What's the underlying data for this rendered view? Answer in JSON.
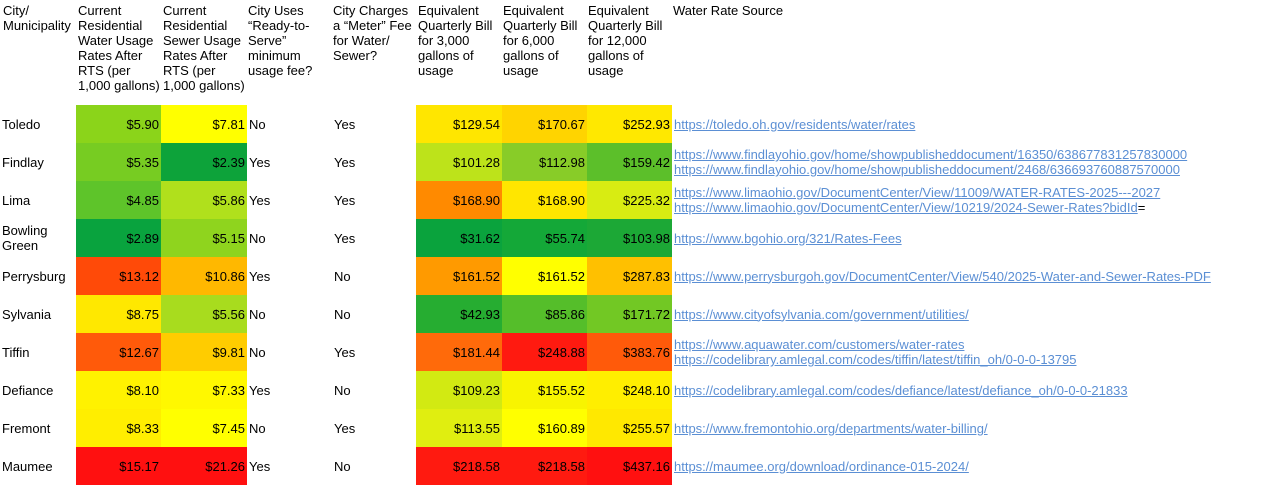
{
  "headers": [
    "City/\nMunicipality",
    "Current\nResidential\nWater Usage\nRates After\nRTS (per\n1,000 gallons)",
    "Current\nResidential\nSewer Usage\nRates After\nRTS (per\n1,000 gallons)",
    "City Uses\n“Ready-to-\nServe”\nminimum\nusage fee?",
    "City Charges\na “Meter” Fee\nfor Water/\nSewer?",
    "Equivalent\nQuarterly Bill\nfor 3,000\ngallons of\nusage",
    "Equivalent\nQuarterly Bill\nfor 6,000\ngallons of\nusage",
    "Equivalent\nQuarterly Bill\nfor 12,000\ngallons of\nusage",
    "Water Rate Source"
  ],
  "rows": [
    {
      "city": "Toledo",
      "water": "$5.90",
      "sewer": "$7.81",
      "rts": "No",
      "meter": "Yes",
      "bill3": "$129.54",
      "bill6": "$170.67",
      "bill12": "$252.93",
      "colors": [
        "#8bd41a",
        "#ffff00",
        "#ffe600",
        "#ffd400",
        "#ffe800"
      ],
      "links": [
        "https://toledo.oh.gov/residents/water/rates"
      ],
      "link_suffix": ""
    },
    {
      "city": "Findlay",
      "water": "$5.35",
      "sewer": "$2.39",
      "rts": "Yes",
      "meter": "Yes",
      "bill3": "$101.28",
      "bill6": "$112.98",
      "bill12": "$159.42",
      "colors": [
        "#77cc22",
        "#0da33a",
        "#bde31a",
        "#88cc28",
        "#5cbf2a"
      ],
      "links": [
        "https://www.findlayohio.gov/home/showpublisheddocument/16350/638677831257830000",
        "https://www.findlayohio.gov/home/showpublisheddocument/2468/636693760887570000"
      ],
      "link_suffix": ""
    },
    {
      "city": "Lima",
      "water": "$4.85",
      "sewer": "$5.86",
      "rts": "Yes",
      "meter": "Yes",
      "bill3": "$168.90",
      "bill6": "$168.90",
      "bill12": "$225.32",
      "colors": [
        "#5ec42a",
        "#b0e01c",
        "#ff8a00",
        "#ffe600",
        "#d8ec12"
      ],
      "links": [
        "https://www.limaohio.gov/DocumentCenter/View/11009/WATER-RATES-2025---2027",
        "https://www.limaohio.gov/DocumentCenter/View/10219/2024-Sewer-Rates?bidId"
      ],
      "link_suffix": "="
    },
    {
      "city": "Bowling\nGreen",
      "water": "$2.89",
      "sewer": "$5.15",
      "rts": "No",
      "meter": "Yes",
      "bill3": "$31.62",
      "bill6": "$55.74",
      "bill12": "$103.98",
      "colors": [
        "#09a33e",
        "#8fd41e",
        "#0aa33d",
        "#14a838",
        "#1ca836"
      ],
      "links": [
        "https://www.bgohio.org/321/Rates-Fees"
      ],
      "link_suffix": ""
    },
    {
      "city": "Perrysburg",
      "water": "$13.12",
      "sewer": "$10.86",
      "rts": "Yes",
      "meter": "No",
      "bill3": "$161.52",
      "bill6": "$161.52",
      "bill12": "$287.83",
      "colors": [
        "#ff4a08",
        "#ffb800",
        "#ff9a00",
        "#ffff00",
        "#ffc000"
      ],
      "links": [
        "https://www.perrysburgoh.gov/DocumentCenter/View/540/2025-Water-and-Sewer-Rates-PDF"
      ],
      "link_suffix": ""
    },
    {
      "city": "Sylvania",
      "water": "$8.75",
      "sewer": "$5.56",
      "rts": "No",
      "meter": "No",
      "bill3": "$42.93",
      "bill6": "$85.86",
      "bill12": "$171.72",
      "colors": [
        "#ffe800",
        "#a8dc1e",
        "#26ad31",
        "#55be2a",
        "#72c824"
      ],
      "links": [
        "https://www.cityofsylvania.com/government/utilities/"
      ],
      "link_suffix": ""
    },
    {
      "city": "Tiffin",
      "water": "$12.67",
      "sewer": "$9.81",
      "rts": "No",
      "meter": "Yes",
      "bill3": "$181.44",
      "bill6": "$248.88",
      "bill12": "$383.76",
      "colors": [
        "#ff5a0a",
        "#ffcc00",
        "#ff6a0a",
        "#ff1a10",
        "#ff5a0a"
      ],
      "links": [
        "https://www.aquawater.com/customers/water-rates",
        "https://codelibrary.amlegal.com/codes/tiffin/latest/tiffin_oh/0-0-0-13795"
      ],
      "link_suffix": ""
    },
    {
      "city": "Defiance",
      "water": "$8.10",
      "sewer": "$7.33",
      "rts": "Yes",
      "meter": "No",
      "bill3": "$109.23",
      "bill6": "$155.52",
      "bill12": "$248.10",
      "colors": [
        "#fff200",
        "#fff800",
        "#d2ea12",
        "#f8f400",
        "#ffee00"
      ],
      "links": [
        "https://codelibrary.amlegal.com/codes/defiance/latest/defiance_oh/0-0-0-21833"
      ],
      "link_suffix": ""
    },
    {
      "city": "Fremont",
      "water": "$8.33",
      "sewer": "$7.45",
      "rts": "No",
      "meter": "Yes",
      "bill3": "$113.55",
      "bill6": "$160.89",
      "bill12": "$255.57",
      "colors": [
        "#ffee00",
        "#ffff00",
        "#e0ee10",
        "#ffff00",
        "#ffe800"
      ],
      "links": [
        "https://www.fremontohio.org/departments/water-billing/"
      ],
      "link_suffix": ""
    },
    {
      "city": "Maumee",
      "water": "$15.17",
      "sewer": "$21.26",
      "rts": "Yes",
      "meter": "No",
      "bill3": "$218.58",
      "bill6": "$218.58",
      "bill12": "$437.16",
      "colors": [
        "#ff1010",
        "#ff1010",
        "#ff1a10",
        "#ff1a10",
        "#ff1010"
      ],
      "links": [
        "https://maumee.org/download/ordinance-015-2024/"
      ],
      "link_suffix": ""
    }
  ]
}
